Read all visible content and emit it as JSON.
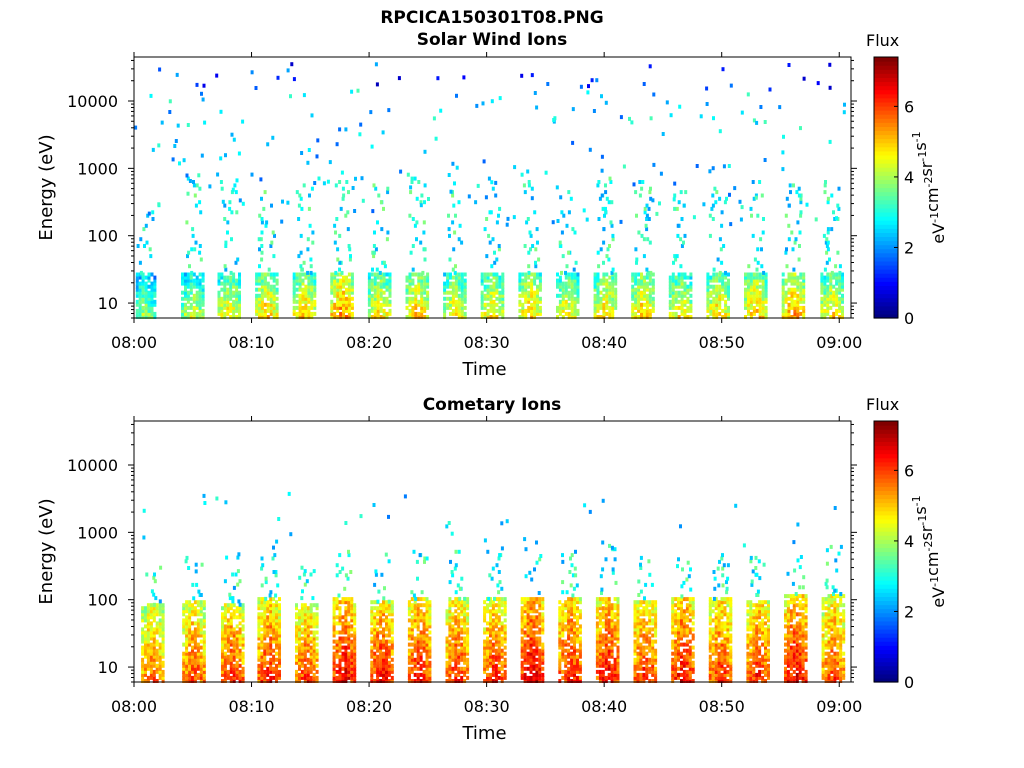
{
  "figure": {
    "title": "RPCICA150301T08.PNG"
  },
  "chart_data": [
    {
      "type": "heatmap",
      "title": "Solar Wind Ions",
      "xlabel": "Time",
      "ylabel": "Energy (eV)",
      "x_ticks": [
        "08:00",
        "08:10",
        "08:20",
        "08:30",
        "08:40",
        "08:50",
        "09:00"
      ],
      "x_range": [
        "08:00",
        "09:01"
      ],
      "y_scale": "log",
      "y_ticks": [
        10,
        100,
        1000,
        10000
      ],
      "y_tick_labels": [
        "10",
        "100",
        "1000",
        "10000"
      ],
      "y_range": [
        6,
        45000
      ],
      "colorbar": {
        "label_top": "Flux",
        "unit": "eV-1cm-2sr-1s-1",
        "ticks": [
          0,
          2,
          4,
          6
        ],
        "range": [
          0,
          7.4
        ]
      },
      "colormap": "jet",
      "bursts": [
        {
          "t_min": 0.8,
          "e_low": 6,
          "e_high": 30,
          "flux": 4.2,
          "halo_to": 300
        },
        {
          "t_min": 4.9,
          "e_low": 6,
          "e_high": 30,
          "flux": 4.6,
          "halo_to": 900
        },
        {
          "t_min": 8.0,
          "e_low": 6,
          "e_high": 30,
          "flux": 5.0,
          "halo_to": 700
        },
        {
          "t_min": 11.2,
          "e_low": 6,
          "e_high": 30,
          "flux": 5.3,
          "halo_to": 500
        },
        {
          "t_min": 14.4,
          "e_low": 6,
          "e_high": 30,
          "flux": 5.3,
          "halo_to": 600
        },
        {
          "t_min": 17.6,
          "e_low": 6,
          "e_high": 30,
          "flux": 5.8,
          "halo_to": 700
        },
        {
          "t_min": 20.8,
          "e_low": 6,
          "e_high": 30,
          "flux": 5.1,
          "halo_to": 600
        },
        {
          "t_min": 24.0,
          "e_low": 6,
          "e_high": 30,
          "flux": 5.3,
          "halo_to": 800
        },
        {
          "t_min": 27.2,
          "e_low": 6,
          "e_high": 30,
          "flux": 5.0,
          "halo_to": 500
        },
        {
          "t_min": 30.4,
          "e_low": 6,
          "e_high": 30,
          "flux": 5.1,
          "halo_to": 900
        },
        {
          "t_min": 33.6,
          "e_low": 6,
          "e_high": 30,
          "flux": 5.3,
          "halo_to": 700
        },
        {
          "t_min": 36.8,
          "e_low": 6,
          "e_high": 30,
          "flux": 5.0,
          "halo_to": 500
        },
        {
          "t_min": 40.0,
          "e_low": 6,
          "e_high": 30,
          "flux": 5.2,
          "halo_to": 800
        },
        {
          "t_min": 43.2,
          "e_low": 6,
          "e_high": 30,
          "flux": 5.3,
          "halo_to": 700
        },
        {
          "t_min": 46.4,
          "e_low": 6,
          "e_high": 30,
          "flux": 5.0,
          "halo_to": 500
        },
        {
          "t_min": 49.6,
          "e_low": 6,
          "e_high": 30,
          "flux": 5.2,
          "halo_to": 600
        },
        {
          "t_min": 52.8,
          "e_low": 6,
          "e_high": 30,
          "flux": 5.4,
          "halo_to": 700
        },
        {
          "t_min": 56.0,
          "e_low": 6,
          "e_high": 30,
          "flux": 5.6,
          "halo_to": 600
        },
        {
          "t_min": 59.3,
          "e_low": 6,
          "e_high": 30,
          "flux": 5.1,
          "halo_to": 700
        }
      ],
      "speckle": {
        "e_low": 150,
        "e_high": 40000,
        "density": 0.55,
        "flux_range": [
          1.6,
          3.4
        ]
      }
    },
    {
      "type": "heatmap",
      "title": "Cometary Ions",
      "xlabel": "Time",
      "ylabel": "Energy (eV)",
      "x_ticks": [
        "08:00",
        "08:10",
        "08:20",
        "08:30",
        "08:40",
        "08:50",
        "09:00"
      ],
      "x_range": [
        "08:00",
        "09:01"
      ],
      "y_scale": "log",
      "y_ticks": [
        10,
        100,
        1000,
        10000
      ],
      "y_tick_labels": [
        "10",
        "100",
        "1000",
        "10000"
      ],
      "y_range": [
        6,
        45000
      ],
      "colorbar": {
        "label_top": "Flux",
        "unit": "eV-1cm-2sr-1s-1",
        "ticks": [
          0,
          2,
          4,
          6
        ],
        "range": [
          0,
          7.4
        ]
      },
      "colormap": "jet",
      "bursts": [
        {
          "t_min": 1.5,
          "e_low": 6,
          "e_high": 90,
          "flux": 6.0,
          "halo_to": 350
        },
        {
          "t_min": 5.0,
          "e_low": 6,
          "e_high": 100,
          "flux": 6.2,
          "halo_to": 700
        },
        {
          "t_min": 8.3,
          "e_low": 6,
          "e_high": 90,
          "flux": 6.4,
          "halo_to": 600
        },
        {
          "t_min": 11.4,
          "e_low": 6,
          "e_high": 110,
          "flux": 6.5,
          "halo_to": 500
        },
        {
          "t_min": 14.6,
          "e_low": 6,
          "e_high": 90,
          "flux": 6.3,
          "halo_to": 400
        },
        {
          "t_min": 17.8,
          "e_low": 6,
          "e_high": 110,
          "flux": 6.8,
          "halo_to": 600
        },
        {
          "t_min": 21.0,
          "e_low": 6,
          "e_high": 100,
          "flux": 6.7,
          "halo_to": 700
        },
        {
          "t_min": 24.2,
          "e_low": 6,
          "e_high": 110,
          "flux": 6.6,
          "halo_to": 600
        },
        {
          "t_min": 27.4,
          "e_low": 6,
          "e_high": 110,
          "flux": 6.4,
          "halo_to": 600
        },
        {
          "t_min": 30.6,
          "e_low": 6,
          "e_high": 110,
          "flux": 6.5,
          "halo_to": 700
        },
        {
          "t_min": 33.8,
          "e_low": 6,
          "e_high": 120,
          "flux": 6.9,
          "halo_to": 900
        },
        {
          "t_min": 37.0,
          "e_low": 6,
          "e_high": 110,
          "flux": 6.6,
          "halo_to": 600
        },
        {
          "t_min": 40.2,
          "e_low": 6,
          "e_high": 120,
          "flux": 6.7,
          "halo_to": 800
        },
        {
          "t_min": 43.4,
          "e_low": 6,
          "e_high": 100,
          "flux": 6.5,
          "halo_to": 500
        },
        {
          "t_min": 46.6,
          "e_low": 6,
          "e_high": 120,
          "flux": 6.7,
          "halo_to": 600
        },
        {
          "t_min": 49.8,
          "e_low": 6,
          "e_high": 110,
          "flux": 6.4,
          "halo_to": 500
        },
        {
          "t_min": 53.0,
          "e_low": 6,
          "e_high": 100,
          "flux": 6.5,
          "halo_to": 500
        },
        {
          "t_min": 56.2,
          "e_low": 6,
          "e_high": 130,
          "flux": 6.8,
          "halo_to": 500
        },
        {
          "t_min": 59.4,
          "e_low": 6,
          "e_high": 130,
          "flux": 6.2,
          "halo_to": 700
        }
      ],
      "speckle": {
        "e_low": 600,
        "e_high": 4000,
        "density": 0.08,
        "flux_range": [
          1.8,
          3.2
        ]
      }
    }
  ],
  "colors": {
    "background": "#ffffff",
    "axis": "#000000"
  }
}
